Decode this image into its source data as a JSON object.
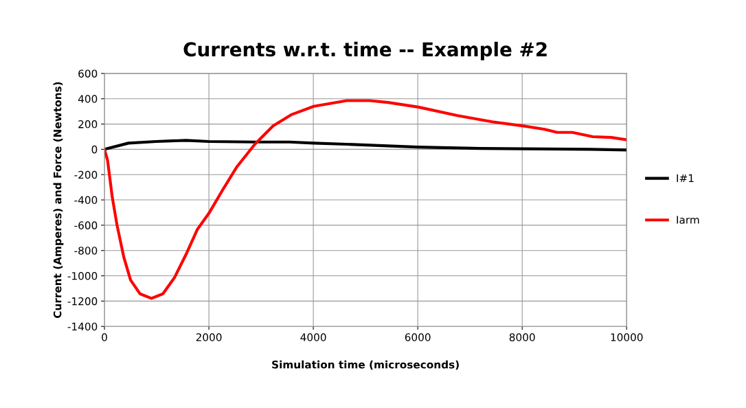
{
  "chart_data": {
    "type": "line",
    "title": "Currents w.r.t. time -- Example #2",
    "xlabel": "Simulation time (microseconds)",
    "ylabel": "Current (Amperes) and Force (Newtons)",
    "xlim": [
      0,
      10000
    ],
    "xticks": [
      0,
      2000,
      4000,
      6000,
      8000,
      10000
    ],
    "ylim": [
      -1400,
      600
    ],
    "yticks": [
      -1400,
      -1200,
      -1000,
      -800,
      -600,
      -400,
      -200,
      0,
      200,
      400,
      600
    ],
    "grid": true,
    "legend": "right",
    "marker": "none",
    "line_style": "solid",
    "series": [
      {
        "name": "I#1",
        "color": "#000000",
        "x": [
          0,
          460,
          990,
          1560,
          2000,
          2880,
          3540,
          4010,
          4640,
          6000,
          7200,
          8020,
          9310,
          10000
        ],
        "values": [
          0,
          49,
          62,
          71,
          62,
          58,
          58,
          49,
          40,
          18,
          7,
          4,
          0,
          -5
        ]
      },
      {
        "name": "Iarm",
        "color": "#ff0000",
        "x": [
          0,
          60,
          150,
          240,
          370,
          500,
          680,
          900,
          1120,
          1340,
          1560,
          1780,
          2000,
          2260,
          2530,
          2880,
          3230,
          3590,
          4010,
          4640,
          5080,
          5430,
          6010,
          6760,
          7420,
          8020,
          8430,
          8670,
          8960,
          9350,
          9710,
          10000
        ],
        "values": [
          0,
          -87,
          -379,
          -597,
          -851,
          -1033,
          -1142,
          -1178,
          -1142,
          -1015,
          -833,
          -633,
          -506,
          -324,
          -142,
          40,
          185,
          276,
          340,
          385,
          385,
          371,
          334,
          267,
          218,
          185,
          158,
          134,
          134,
          100,
          94,
          76
        ]
      }
    ]
  }
}
